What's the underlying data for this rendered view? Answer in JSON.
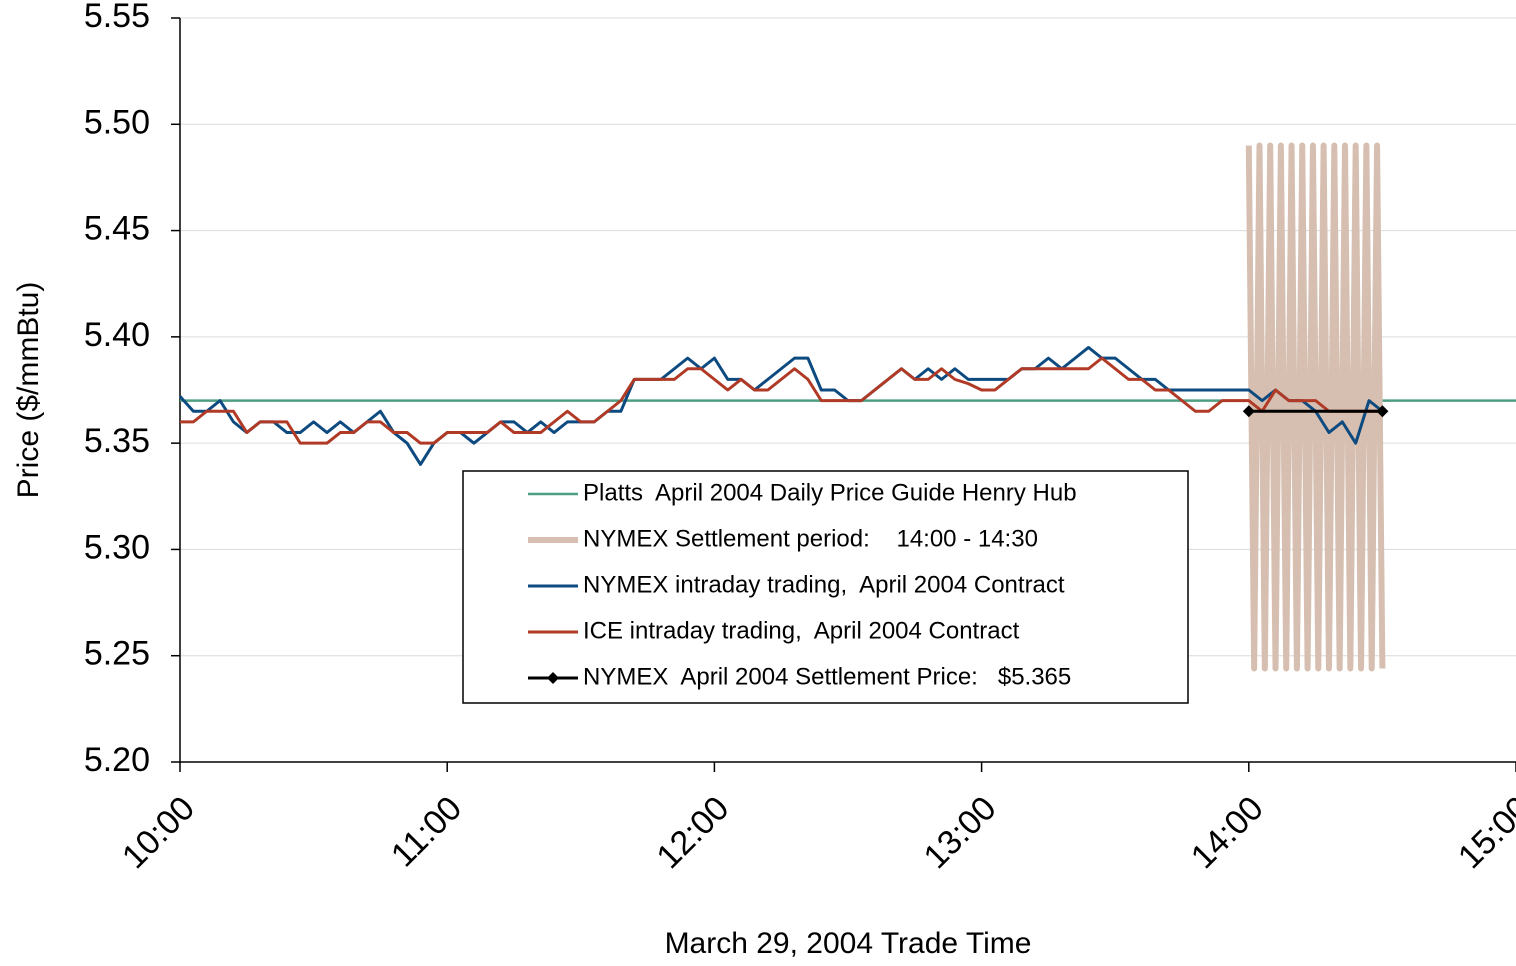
{
  "chart_data": {
    "type": "line",
    "x_label": "March 29, 2004 Trade Time",
    "y_label": "Price ($/mmBtu)",
    "xlim": [
      10,
      15
    ],
    "xticks": [
      {
        "value": 10,
        "label": "10:00"
      },
      {
        "value": 11,
        "label": "11:00"
      },
      {
        "value": 12,
        "label": "12:00"
      },
      {
        "value": 13,
        "label": "13:00"
      },
      {
        "value": 14,
        "label": "14:00"
      },
      {
        "value": 15,
        "label": "15:00"
      }
    ],
    "ylim": [
      5.2,
      5.55
    ],
    "yticks": [
      {
        "value": 5.2,
        "label": "5.20"
      },
      5.25,
      {
        "value": 5.3,
        "label": "5.30"
      },
      5.35,
      {
        "value": 5.4,
        "label": "5.40"
      },
      5.45,
      {
        "value": 5.5,
        "label": "5.50"
      },
      5.55
    ],
    "grid": true,
    "legend": "center",
    "x": [
      10,
      10.05,
      10.1,
      10.15,
      10.2,
      10.25,
      10.3,
      10.35,
      10.4,
      10.45,
      10.5,
      10.55,
      10.6,
      10.65,
      10.7,
      10.75,
      10.8,
      10.85,
      10.9,
      10.95,
      11,
      11.05,
      11.1,
      11.15,
      11.2,
      11.25,
      11.3,
      11.35,
      11.4,
      11.45,
      11.5,
      11.55,
      11.6,
      11.65,
      11.7,
      11.75,
      11.8,
      11.85,
      11.9,
      11.95,
      12,
      12.05,
      12.1,
      12.15,
      12.2,
      12.25,
      12.3,
      12.35,
      12.4,
      12.45,
      12.5,
      12.55,
      12.6,
      12.65,
      12.7,
      12.75,
      12.8,
      12.85,
      12.9,
      12.95,
      13,
      13.05,
      13.1,
      13.15,
      13.2,
      13.25,
      13.3,
      13.35,
      13.4,
      13.45,
      13.5,
      13.55,
      13.6,
      13.65,
      13.7,
      13.75,
      13.8,
      13.85,
      13.9,
      13.95,
      14,
      14.05,
      14.1,
      14.15,
      14.2,
      14.25,
      14.3,
      14.35,
      14.4,
      14.45,
      14.5
    ],
    "series": [
      {
        "name": "Platts  April 2004 Daily Price Guide Henry Hub",
        "color": "#4e9f82",
        "line_width": 2.5,
        "x": [
          10,
          15
        ],
        "values": [
          5.37,
          5.37
        ]
      },
      {
        "name": "NYMEX Settlement period:    14:00 - 14:30",
        "color": "#d6bfb0",
        "line_width": 6,
        "x": [
          14,
          14.02,
          14.04,
          14.06,
          14.08,
          14.1,
          14.12,
          14.14,
          14.16,
          14.18,
          14.2,
          14.22,
          14.24,
          14.26,
          14.28,
          14.3,
          14.32,
          14.34,
          14.36,
          14.38,
          14.4,
          14.42,
          14.44,
          14.46,
          14.48,
          14.5
        ],
        "values": [
          5.49,
          5.244,
          5.49,
          5.244,
          5.49,
          5.244,
          5.49,
          5.244,
          5.49,
          5.244,
          5.49,
          5.244,
          5.49,
          5.244,
          5.49,
          5.244,
          5.49,
          5.244,
          5.49,
          5.244,
          5.49,
          5.244,
          5.49,
          5.244,
          5.49,
          5.244
        ]
      },
      {
        "name": "NYMEX intraday trading,  April 2004 Contract",
        "color": "#0d4a80",
        "line_width": 3,
        "values": [
          5.372,
          5.365,
          5.365,
          5.37,
          5.36,
          5.355,
          5.36,
          5.36,
          5.355,
          5.355,
          5.36,
          5.355,
          5.36,
          5.355,
          5.36,
          5.365,
          5.355,
          5.35,
          5.34,
          5.35,
          5.355,
          5.355,
          5.35,
          5.355,
          5.36,
          5.36,
          5.355,
          5.36,
          5.355,
          5.36,
          5.36,
          5.36,
          5.365,
          5.365,
          5.38,
          5.38,
          5.38,
          5.385,
          5.39,
          5.385,
          5.39,
          5.38,
          5.38,
          5.375,
          5.38,
          5.385,
          5.39,
          5.39,
          5.375,
          5.375,
          5.37,
          5.37,
          5.375,
          5.38,
          5.385,
          5.38,
          5.385,
          5.38,
          5.385,
          5.38,
          5.38,
          5.38,
          5.38,
          5.385,
          5.385,
          5.39,
          5.385,
          5.39,
          5.395,
          5.39,
          5.39,
          5.385,
          5.38,
          5.38,
          5.375,
          5.375,
          5.375,
          5.375,
          5.375,
          5.375,
          5.375,
          5.37,
          5.375,
          5.37,
          5.37,
          5.365,
          5.355,
          5.36,
          5.35,
          5.37,
          5.365
        ]
      },
      {
        "name": "ICE intraday trading,  April 2004 Contract",
        "color": "#b03a26",
        "line_width": 3,
        "values": [
          5.36,
          5.36,
          5.365,
          5.365,
          5.365,
          5.355,
          5.36,
          5.36,
          5.36,
          5.35,
          5.35,
          5.35,
          5.355,
          5.355,
          5.36,
          5.36,
          5.355,
          5.355,
          5.35,
          5.35,
          5.355,
          5.355,
          5.355,
          5.355,
          5.36,
          5.355,
          5.355,
          5.355,
          5.36,
          5.365,
          5.36,
          5.36,
          5.365,
          5.37,
          5.38,
          5.38,
          5.38,
          5.38,
          5.385,
          5.385,
          5.38,
          5.375,
          5.38,
          5.375,
          5.375,
          5.38,
          5.385,
          5.38,
          5.37,
          5.37,
          5.37,
          5.37,
          5.375,
          5.38,
          5.385,
          5.38,
          5.38,
          5.385,
          5.38,
          5.378,
          5.375,
          5.375,
          5.38,
          5.385,
          5.385,
          5.385,
          5.385,
          5.385,
          5.385,
          5.39,
          5.385,
          5.38,
          5.38,
          5.375,
          5.375,
          5.37,
          5.365,
          5.365,
          5.37,
          5.37,
          5.37,
          5.365,
          5.375,
          5.37,
          5.37,
          5.37,
          5.365,
          5.365,
          5.365,
          5.365,
          5.365
        ]
      },
      {
        "name": "NYMEX  April 2004 Settlement Price:   $5.365",
        "color": "#000000",
        "line_width": 3,
        "marker": "diamond",
        "x": [
          14,
          14.5
        ],
        "values": [
          5.365,
          5.365
        ]
      }
    ]
  }
}
